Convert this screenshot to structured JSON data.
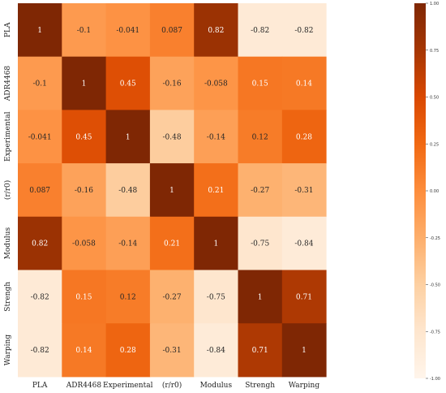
{
  "chart_data": {
    "type": "heatmap",
    "title": "",
    "xlabel": "",
    "ylabel": "",
    "row_labels": [
      "PLA",
      "ADR4468",
      "Experimental",
      "(r/r0)",
      "Modulus",
      "Strengh",
      "Warping"
    ],
    "col_labels": [
      "PLA",
      "ADR4468",
      "Experimental",
      "(r/r0)",
      "Modulus",
      "Strengh",
      "Warping"
    ],
    "values": [
      [
        1,
        -0.1,
        -0.041,
        0.087,
        0.82,
        -0.82,
        -0.82
      ],
      [
        -0.1,
        1,
        0.45,
        -0.16,
        -0.058,
        0.15,
        0.14
      ],
      [
        -0.041,
        0.45,
        1,
        -0.48,
        -0.14,
        0.12,
        0.28
      ],
      [
        0.087,
        -0.16,
        -0.48,
        1,
        0.21,
        -0.27,
        -0.31
      ],
      [
        0.82,
        -0.058,
        -0.14,
        0.21,
        1,
        -0.75,
        -0.84
      ],
      [
        -0.82,
        0.15,
        0.12,
        -0.27,
        -0.75,
        1,
        0.71
      ],
      [
        -0.82,
        0.14,
        0.28,
        -0.31,
        -0.84,
        0.71,
        1
      ]
    ],
    "value_labels": [
      [
        "1",
        "-0.1",
        "-0.041",
        "0.087",
        "0.82",
        "-0.82",
        "-0.82"
      ],
      [
        "-0.1",
        "1",
        "0.45",
        "-0.16",
        "-0.058",
        "0.15",
        "0.14"
      ],
      [
        "-0.041",
        "0.45",
        "1",
        "-0.48",
        "-0.14",
        "0.12",
        "0.28"
      ],
      [
        "0.087",
        "-0.16",
        "-0.48",
        "1",
        "0.21",
        "-0.27",
        "-0.31"
      ],
      [
        "0.82",
        "-0.058",
        "-0.14",
        "0.21",
        "1",
        "-0.75",
        "-0.84"
      ],
      [
        "-0.82",
        "0.15",
        "0.12",
        "-0.27",
        "-0.75",
        "1",
        "0.71"
      ],
      [
        "-0.82",
        "0.14",
        "0.28",
        "-0.31",
        "-0.84",
        "0.71",
        "1"
      ]
    ],
    "colorbar": {
      "range": [
        -1.0,
        1.0
      ],
      "ticks": [
        1.0,
        0.75,
        0.5,
        0.25,
        0.0,
        -0.25,
        -0.5,
        -0.75,
        -1.0
      ],
      "tick_labels": [
        "1.00",
        "0.75",
        "0.50",
        "0.25",
        "0.00",
        "-0.25",
        "-0.50",
        "-0.75",
        "-1.00"
      ],
      "colormap": "Oranges",
      "low_color": "#fff5eb",
      "high_color": "#7f2704"
    },
    "grid": false,
    "legend": "colorbar-right"
  }
}
